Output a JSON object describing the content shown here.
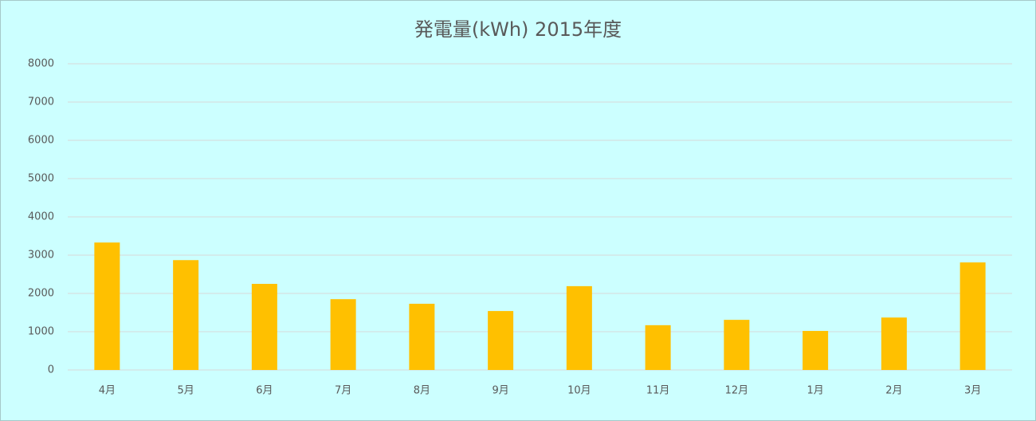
{
  "chart_data": {
    "type": "bar",
    "title": "発電量(kWh) 2015年度",
    "categories": [
      "4月",
      "5月",
      "6月",
      "7月",
      "8月",
      "9月",
      "10月",
      "11月",
      "12月",
      "1月",
      "2月",
      "3月"
    ],
    "values": [
      3330,
      2870,
      2250,
      1850,
      1730,
      1540,
      2190,
      1170,
      1310,
      1020,
      1370,
      2810
    ],
    "color": "#ffc000",
    "ylim": [
      0,
      8000
    ],
    "yticks": [
      0,
      1000,
      2000,
      3000,
      4000,
      5000,
      6000,
      7000,
      8000
    ],
    "grid": true
  }
}
